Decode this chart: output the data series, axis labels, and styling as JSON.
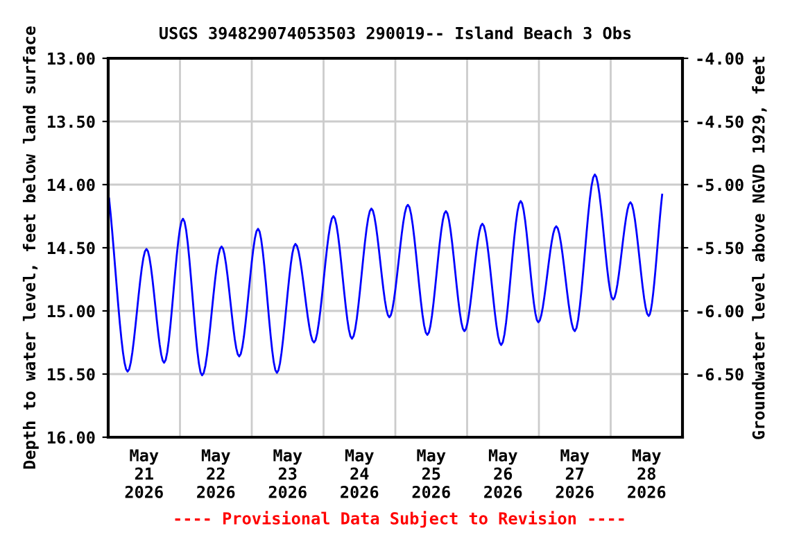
{
  "chart_data": {
    "type": "line",
    "title": "USGS 394829074053503 290019-- Island Beach 3 Obs",
    "ylabel": "Depth to water level, feet below land surface",
    "y2label": "Groundwater level above NGVD 1929, feet",
    "annotations": [
      "---- Provisional Data Subject to Revision ----"
    ],
    "x": [
      "2026-05-21T00:18",
      "2026-05-21T06:30",
      "2026-05-21T12:48",
      "2026-05-21T18:42",
      "2026-05-22T01:00",
      "2026-05-22T07:24",
      "2026-05-22T13:54",
      "2026-05-22T19:48",
      "2026-05-23T02:06",
      "2026-05-23T08:24",
      "2026-05-23T14:36",
      "2026-05-23T20:48",
      "2026-05-24T03:18",
      "2026-05-24T09:30",
      "2026-05-24T16:00",
      "2026-05-24T22:00",
      "2026-05-25T04:12",
      "2026-05-25T10:42",
      "2026-05-25T16:54",
      "2026-05-25T23:06",
      "2026-05-26T05:06",
      "2026-05-26T11:24",
      "2026-05-26T17:54",
      "2026-05-26T23:48",
      "2026-05-27T05:48",
      "2026-05-27T12:00",
      "2026-05-27T18:42",
      "2026-05-28T00:48",
      "2026-05-28T06:36",
      "2026-05-28T12:42",
      "2026-05-28T17:12"
    ],
    "series": [
      {
        "color": "#0000ff",
        "values": [
          14.11,
          15.48,
          14.51,
          15.41,
          14.27,
          15.51,
          14.49,
          15.36,
          14.35,
          15.49,
          14.47,
          15.25,
          14.25,
          15.22,
          14.19,
          15.05,
          14.16,
          15.19,
          14.21,
          15.16,
          14.31,
          15.27,
          14.13,
          15.09,
          14.33,
          15.16,
          13.92,
          14.91,
          14.14,
          15.04,
          14.08
        ]
      }
    ],
    "xlim": [
      "2026-05-21",
      "2026-05-29"
    ],
    "xticks": [
      {
        "value": "2026-05-21T12:00",
        "label": "May\n21\n2026"
      },
      {
        "value": "2026-05-22",
        "label": null
      },
      {
        "value": "2026-05-22T12:00",
        "label": "May\n22\n2026"
      },
      {
        "value": "2026-05-23",
        "label": null
      },
      {
        "value": "2026-05-23T12:00",
        "label": "May\n23\n2026"
      },
      {
        "value": "2026-05-24",
        "label": null
      },
      {
        "value": "2026-05-24T12:00",
        "label": "May\n24\n2026"
      },
      {
        "value": "2026-05-25",
        "label": null
      },
      {
        "value": "2026-05-25T12:00",
        "label": "May\n25\n2026"
      },
      {
        "value": "2026-05-26",
        "label": null
      },
      {
        "value": "2026-05-26T12:00",
        "label": "May\n26\n2026"
      },
      {
        "value": "2026-05-27",
        "label": null
      },
      {
        "value": "2026-05-27T12:00",
        "label": "May\n27\n2026"
      },
      {
        "value": "2026-05-28",
        "label": null
      },
      {
        "value": "2026-05-28T12:00",
        "label": "May\n28\n2026"
      }
    ],
    "ylim": [
      16,
      13
    ],
    "yticks": [
      {
        "value": 13,
        "label": "13.00"
      },
      {
        "value": 13.5,
        "label": "13.50"
      },
      {
        "value": 14,
        "label": "14.00"
      },
      {
        "value": 14.5,
        "label": "14.50"
      },
      {
        "value": 15,
        "label": "15.00"
      },
      {
        "value": 15.5,
        "label": "15.50"
      },
      {
        "value": 16,
        "label": "16.00"
      }
    ],
    "y2lim": [
      -7,
      -4
    ],
    "y2ticks": [
      {
        "value": -4,
        "label": "-4.00"
      },
      {
        "value": -4.5,
        "label": "-4.50"
      },
      {
        "value": -5,
        "label": "-5.00"
      },
      {
        "value": -5.5,
        "label": "-5.50"
      },
      {
        "value": -6,
        "label": "-6.00"
      },
      {
        "value": -6.5,
        "label": "-6.50"
      }
    ],
    "grid": true,
    "legend": false,
    "marker": "none",
    "line_style": "solid"
  }
}
